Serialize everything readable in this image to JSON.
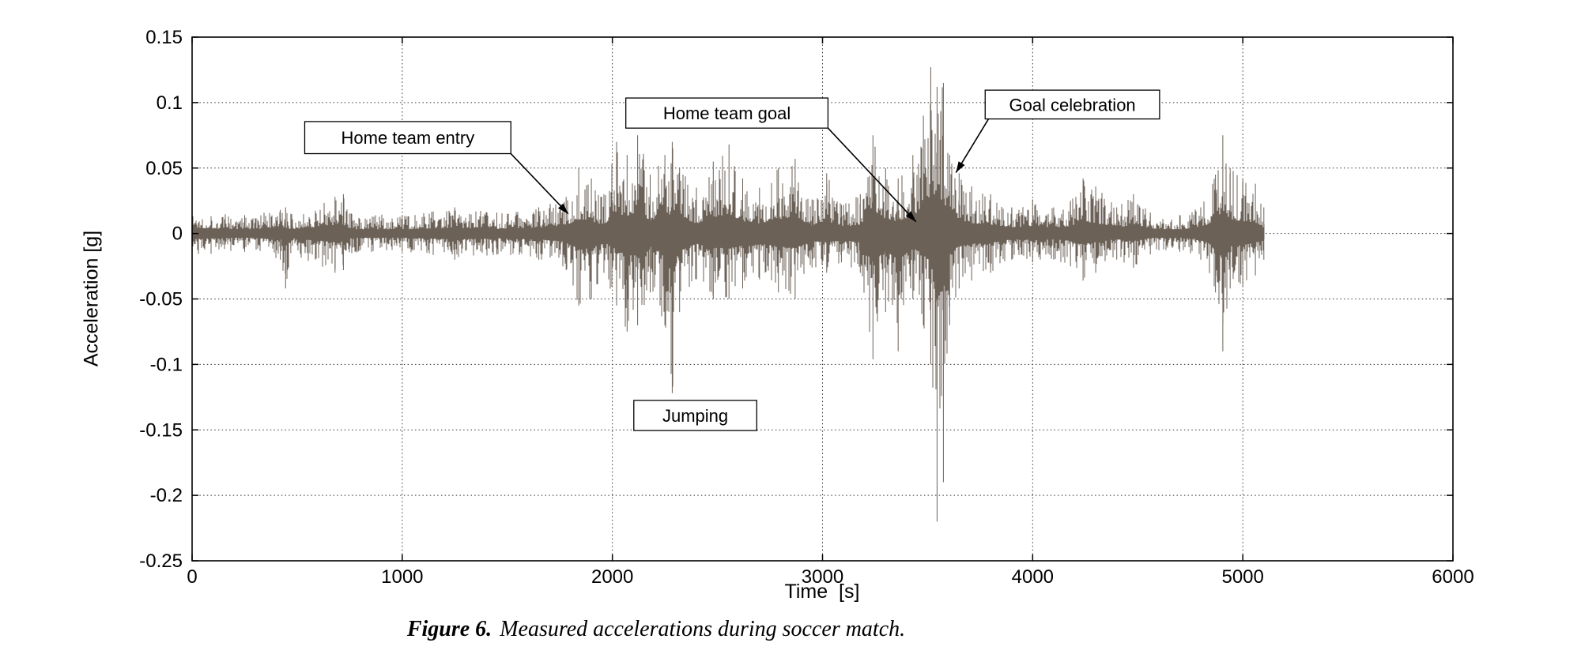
{
  "caption": {
    "prefix": "Figure 6.",
    "text": "Measured accelerations during soccer match."
  },
  "chart_data": {
    "type": "line",
    "title": "",
    "xlabel": "Time  [s]",
    "ylabel": "Acceleration [g]",
    "xlim": [
      0,
      6000
    ],
    "ylim": [
      -0.25,
      0.15
    ],
    "xticks": [
      0,
      1000,
      2000,
      3000,
      4000,
      5000,
      6000
    ],
    "yticks": [
      -0.25,
      -0.2,
      -0.15,
      -0.1,
      -0.05,
      0,
      0.05,
      0.1,
      0.15
    ],
    "grid": "dotted",
    "legend": "none",
    "colors": {
      "waveform": "#6b6157",
      "grid": "#333333",
      "axis": "#000000",
      "annotation_box_fill": "#ffffff",
      "annotation_box_border": "#000000"
    },
    "signal": {
      "description": "Dense zero-mean acceleration noise; envelope control points are [time_s, +amplitude_g, -amplitude_g]",
      "t_end": 5100,
      "extremes": {
        "max": [
          3520,
          0.127
        ],
        "min": [
          3545,
          -0.22
        ]
      },
      "envelope": [
        [
          0,
          0.018,
          0.018
        ],
        [
          250,
          0.014,
          0.014
        ],
        [
          420,
          0.018,
          0.02
        ],
        [
          445,
          0.02,
          0.042
        ],
        [
          470,
          0.015,
          0.015
        ],
        [
          680,
          0.028,
          0.03
        ],
        [
          720,
          0.03,
          0.028
        ],
        [
          760,
          0.015,
          0.015
        ],
        [
          1000,
          0.014,
          0.014
        ],
        [
          1250,
          0.02,
          0.02
        ],
        [
          1450,
          0.016,
          0.016
        ],
        [
          1650,
          0.02,
          0.02
        ],
        [
          1780,
          0.028,
          0.028
        ],
        [
          1840,
          0.05,
          0.055
        ],
        [
          1900,
          0.042,
          0.05
        ],
        [
          1960,
          0.03,
          0.03
        ],
        [
          2020,
          0.07,
          0.055
        ],
        [
          2070,
          0.06,
          0.075
        ],
        [
          2120,
          0.075,
          0.07
        ],
        [
          2180,
          0.045,
          0.045
        ],
        [
          2250,
          0.06,
          0.07
        ],
        [
          2285,
          0.07,
          0.122
        ],
        [
          2320,
          0.05,
          0.06
        ],
        [
          2400,
          0.035,
          0.035
        ],
        [
          2480,
          0.055,
          0.05
        ],
        [
          2555,
          0.068,
          0.05
        ],
        [
          2620,
          0.042,
          0.042
        ],
        [
          2700,
          0.035,
          0.035
        ],
        [
          2790,
          0.05,
          0.045
        ],
        [
          2870,
          0.057,
          0.05
        ],
        [
          2950,
          0.026,
          0.026
        ],
        [
          3020,
          0.046,
          0.03
        ],
        [
          3090,
          0.022,
          0.022
        ],
        [
          3180,
          0.03,
          0.03
        ],
        [
          3240,
          0.075,
          0.096
        ],
        [
          3300,
          0.05,
          0.06
        ],
        [
          3360,
          0.042,
          0.09
        ],
        [
          3430,
          0.06,
          0.05
        ],
        [
          3480,
          0.09,
          0.07
        ],
        [
          3515,
          0.127,
          0.1
        ],
        [
          3545,
          0.112,
          0.22
        ],
        [
          3575,
          0.115,
          0.19
        ],
        [
          3605,
          0.06,
          0.07
        ],
        [
          3650,
          0.046,
          0.042
        ],
        [
          3710,
          0.036,
          0.036
        ],
        [
          3800,
          0.03,
          0.03
        ],
        [
          3900,
          0.02,
          0.02
        ],
        [
          4000,
          0.026,
          0.022
        ],
        [
          4100,
          0.02,
          0.02
        ],
        [
          4180,
          0.025,
          0.025
        ],
        [
          4240,
          0.042,
          0.036
        ],
        [
          4300,
          0.036,
          0.03
        ],
        [
          4400,
          0.02,
          0.02
        ],
        [
          4480,
          0.03,
          0.026
        ],
        [
          4560,
          0.016,
          0.016
        ],
        [
          4700,
          0.014,
          0.014
        ],
        [
          4800,
          0.02,
          0.02
        ],
        [
          4870,
          0.045,
          0.045
        ],
        [
          4905,
          0.075,
          0.09
        ],
        [
          4940,
          0.05,
          0.042
        ],
        [
          5000,
          0.042,
          0.04
        ],
        [
          5060,
          0.038,
          0.032
        ],
        [
          5100,
          0.02,
          0.02
        ]
      ]
    },
    "annotations": [
      {
        "id": "home-team-entry",
        "label": "Home team entry",
        "box_x": [
          536,
          1517
        ],
        "box_y": [
          0.061,
          0.0855
        ],
        "arrow": {
          "from": [
            1517,
            0.061
          ],
          "to": [
            1790,
            0.015
          ]
        }
      },
      {
        "id": "home-team-goal",
        "label": "Home team goal",
        "box_x": [
          2064,
          3026
        ],
        "box_y": [
          0.0805,
          0.1035
        ],
        "arrow": {
          "from": [
            3026,
            0.0805
          ],
          "to": [
            3445,
            0.009
          ]
        }
      },
      {
        "id": "goal-celebration",
        "label": "Goal celebration",
        "box_x": [
          3774,
          4604
        ],
        "box_y": [
          0.0875,
          0.1095
        ],
        "arrow": {
          "from": [
            3790,
            0.0875
          ],
          "to": [
            3635,
            0.0465
          ]
        }
      },
      {
        "id": "jumping",
        "label": "Jumping",
        "box_x": [
          2102,
          2687
        ],
        "box_y": [
          -0.1505,
          -0.1275
        ],
        "arrow": null
      }
    ]
  }
}
